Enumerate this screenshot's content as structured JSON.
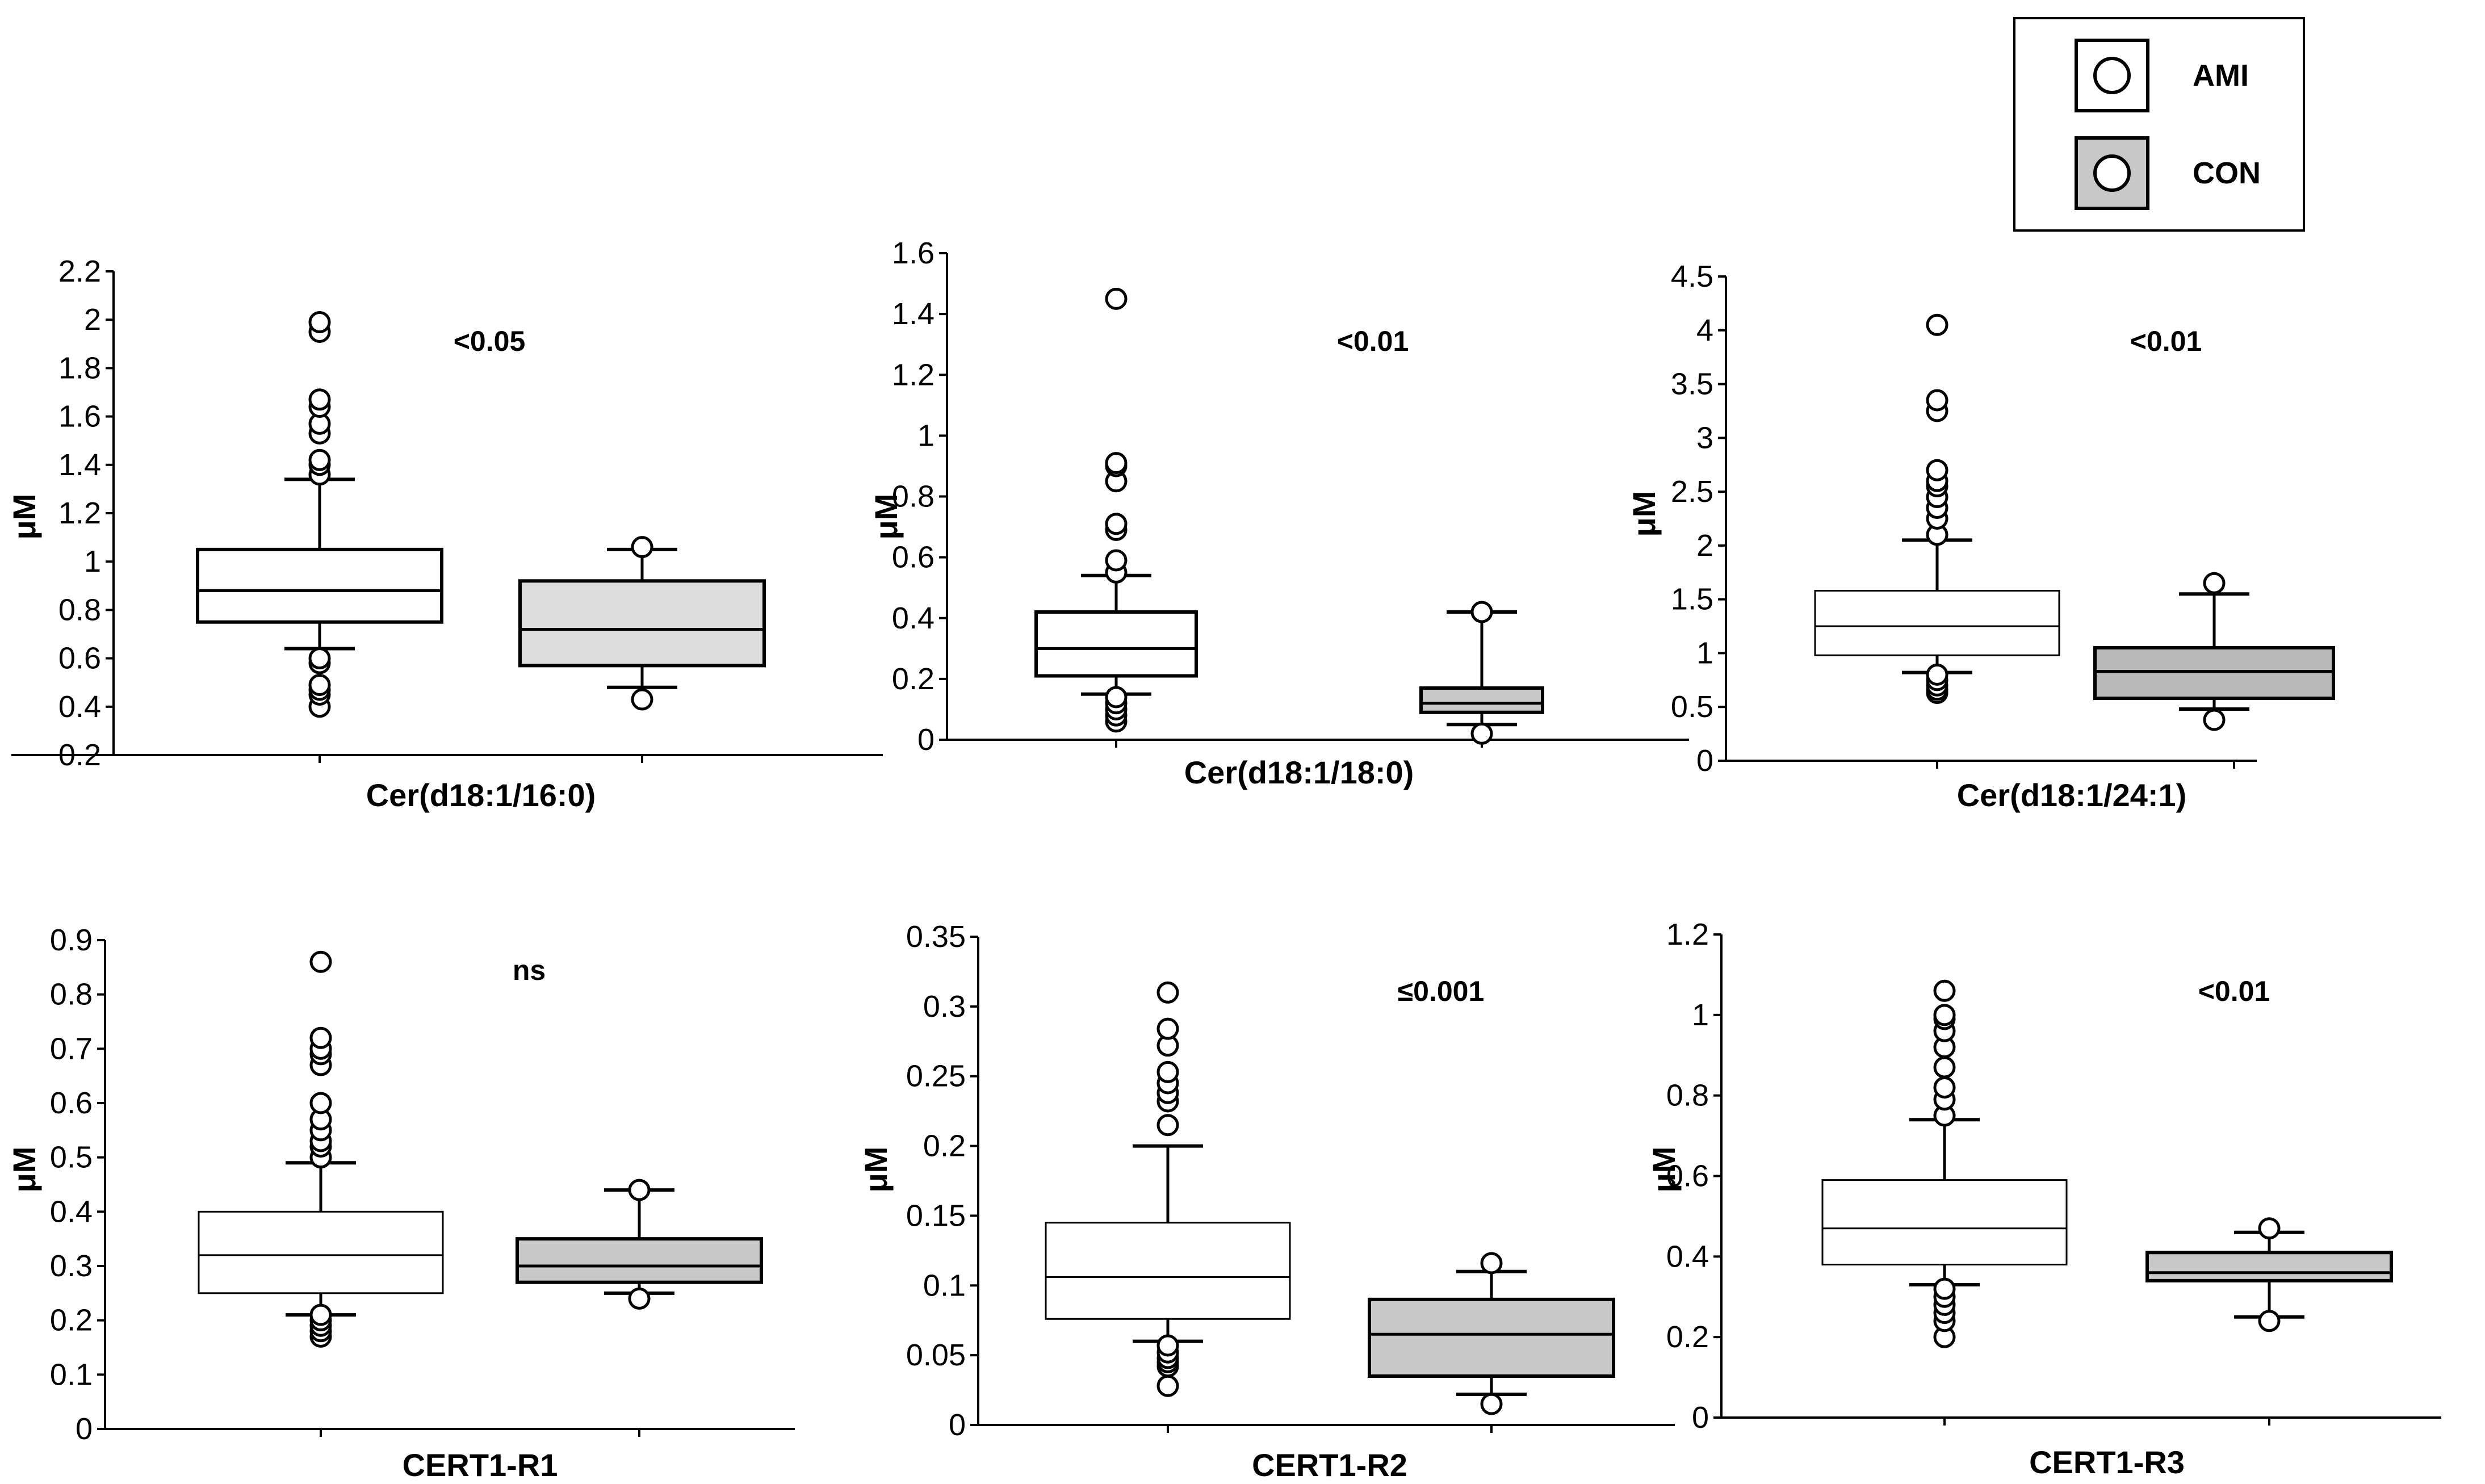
{
  "legend": {
    "items": [
      {
        "label": "AMI",
        "fill": "#ffffff"
      },
      {
        "label": "CON",
        "fill": "#c8c8c8"
      }
    ]
  },
  "chart_data": [
    {
      "type": "box",
      "title": "",
      "xlabel": "Cer(d18:1/16:0)",
      "ylabel": "μM",
      "ylim": [
        0.2,
        2.2
      ],
      "yticks": [
        0.2,
        0.4,
        0.6,
        0.8,
        1,
        1.2,
        1.4,
        1.6,
        1.8,
        2,
        2.2
      ],
      "ytick_labels": [
        "0.2",
        "0.4",
        "0.6",
        "0.8",
        "1",
        "1.2",
        "1.4",
        "1.6",
        "1.8",
        "2",
        "2.2"
      ],
      "annotation": "<0.05",
      "groups": [
        {
          "name": "AMI",
          "fill": "#ffffff",
          "whisker_low": 0.64,
          "q1": 0.75,
          "median": 0.88,
          "q3": 1.05,
          "whisker_high": 1.34,
          "outliers": [
            0.4,
            0.45,
            0.47,
            0.49,
            0.58,
            0.6,
            1.36,
            1.4,
            1.42,
            1.53,
            1.57,
            1.64,
            1.67,
            1.95,
            1.99
          ]
        },
        {
          "name": "CON",
          "fill": "#dcdcdc",
          "whisker_low": 0.48,
          "q1": 0.57,
          "median": 0.72,
          "q3": 0.92,
          "whisker_high": 1.05,
          "outliers": [
            0.43,
            1.06
          ]
        }
      ]
    },
    {
      "type": "box",
      "title": "",
      "xlabel": "Cer(d18:1/18:0)",
      "ylabel": "μM",
      "ylim": [
        0,
        1.6
      ],
      "yticks": [
        0,
        0.2,
        0.4,
        0.6,
        0.8,
        1,
        1.2,
        1.4,
        1.6
      ],
      "ytick_labels": [
        "0",
        "0.2",
        "0.4",
        "0.6",
        "0.8",
        "1",
        "1.2",
        "1.4",
        "1.6"
      ],
      "annotation": "<0.01",
      "groups": [
        {
          "name": "AMI",
          "fill": "#ffffff",
          "whisker_low": 0.15,
          "q1": 0.21,
          "median": 0.3,
          "q3": 0.42,
          "whisker_high": 0.54,
          "outliers": [
            0.06,
            0.08,
            0.1,
            0.12,
            0.14,
            0.55,
            0.59,
            0.69,
            0.71,
            0.85,
            0.9,
            0.91,
            1.45
          ]
        },
        {
          "name": "CON",
          "fill": "#c8c8c8",
          "whisker_low": 0.05,
          "q1": 0.09,
          "median": 0.12,
          "q3": 0.17,
          "whisker_high": 0.42,
          "outliers": [
            0.02,
            0.42
          ]
        }
      ]
    },
    {
      "type": "box",
      "title": "",
      "xlabel": "Cer(d18:1/24:1)",
      "ylabel": "μM",
      "ylim": [
        0,
        4.5
      ],
      "yticks": [
        0,
        0.5,
        1,
        1.5,
        2,
        2.5,
        3,
        3.5,
        4,
        4.5
      ],
      "ytick_labels": [
        "0",
        "0.5",
        "1",
        "1.5",
        "2",
        "2.5",
        "3",
        "3.5",
        "4",
        "4.5"
      ],
      "annotation": "<0.01",
      "groups": [
        {
          "name": "AMI",
          "fill": "#ffffff",
          "whisker_low": 0.82,
          "q1": 0.98,
          "median": 1.25,
          "q3": 1.58,
          "whisker_high": 2.05,
          "outliers": [
            0.63,
            0.66,
            0.7,
            0.75,
            0.8,
            2.1,
            2.25,
            2.35,
            2.45,
            2.55,
            2.6,
            2.7,
            3.25,
            3.35,
            4.05
          ]
        },
        {
          "name": "CON",
          "fill": "#b9b9b9",
          "whisker_low": 0.48,
          "q1": 0.58,
          "median": 0.83,
          "q3": 1.05,
          "whisker_high": 1.55,
          "outliers": [
            0.38,
            1.65
          ]
        }
      ]
    },
    {
      "type": "box",
      "title": "",
      "xlabel": "CERT1-R1",
      "ylabel": "μM",
      "ylim": [
        0,
        0.9
      ],
      "yticks": [
        0,
        0.1,
        0.2,
        0.3,
        0.4,
        0.5,
        0.6,
        0.7,
        0.8,
        0.9
      ],
      "ytick_labels": [
        "0",
        "0.1",
        "0.2",
        "0.3",
        "0.4",
        "0.5",
        "0.6",
        "0.7",
        "0.8",
        "0.9"
      ],
      "annotation": "ns",
      "groups": [
        {
          "name": "AMI",
          "fill": "#ffffff",
          "whisker_low": 0.21,
          "q1": 0.25,
          "median": 0.32,
          "q3": 0.4,
          "whisker_high": 0.49,
          "outliers": [
            0.17,
            0.18,
            0.19,
            0.2,
            0.21,
            0.5,
            0.52,
            0.53,
            0.55,
            0.57,
            0.6,
            0.67,
            0.69,
            0.7,
            0.72,
            0.86
          ]
        },
        {
          "name": "CON",
          "fill": "#c8c8c8",
          "whisker_low": 0.25,
          "q1": 0.27,
          "median": 0.3,
          "q3": 0.35,
          "whisker_high": 0.44,
          "outliers": [
            0.24,
            0.44
          ]
        }
      ]
    },
    {
      "type": "box",
      "title": "",
      "xlabel": "CERT1-R2",
      "ylabel": "μM",
      "ylim": [
        0,
        0.35
      ],
      "yticks": [
        0,
        0.05,
        0.1,
        0.15,
        0.2,
        0.25,
        0.3,
        0.35
      ],
      "ytick_labels": [
        "0",
        "0.05",
        "0.1",
        "0.15",
        "0.2",
        "0.25",
        "0.3",
        "0.35"
      ],
      "annotation": "≤0.001",
      "groups": [
        {
          "name": "AMI",
          "fill": "#ffffff",
          "whisker_low": 0.06,
          "q1": 0.076,
          "median": 0.106,
          "q3": 0.145,
          "whisker_high": 0.2,
          "outliers": [
            0.028,
            0.042,
            0.045,
            0.048,
            0.052,
            0.057,
            0.215,
            0.232,
            0.238,
            0.245,
            0.253,
            0.272,
            0.284,
            0.31
          ]
        },
        {
          "name": "CON",
          "fill": "#c8c8c8",
          "whisker_low": 0.022,
          "q1": 0.035,
          "median": 0.065,
          "q3": 0.09,
          "whisker_high": 0.11,
          "outliers": [
            0.015,
            0.116
          ]
        }
      ]
    },
    {
      "type": "box",
      "title": "",
      "xlabel": "CERT1-R3",
      "ylabel": "μM",
      "ylim": [
        0,
        1.2
      ],
      "yticks": [
        0,
        0.2,
        0.4,
        0.6,
        0.8,
        1,
        1.2
      ],
      "ytick_labels": [
        "0",
        "0.2",
        "0.4",
        "0.6",
        "0.8",
        "1",
        "1.2"
      ],
      "annotation": "<0.01",
      "groups": [
        {
          "name": "AMI",
          "fill": "#ffffff",
          "whisker_low": 0.33,
          "q1": 0.38,
          "median": 0.47,
          "q3": 0.59,
          "whisker_high": 0.74,
          "outliers": [
            0.2,
            0.24,
            0.26,
            0.28,
            0.3,
            0.32,
            0.75,
            0.79,
            0.82,
            0.87,
            0.92,
            0.96,
            0.99,
            1.0,
            1.06
          ]
        },
        {
          "name": "CON",
          "fill": "#c8c8c8",
          "whisker_low": 0.25,
          "q1": 0.34,
          "median": 0.36,
          "q3": 0.41,
          "whisker_high": 0.46,
          "outliers": [
            0.24,
            0.47
          ]
        }
      ]
    }
  ]
}
